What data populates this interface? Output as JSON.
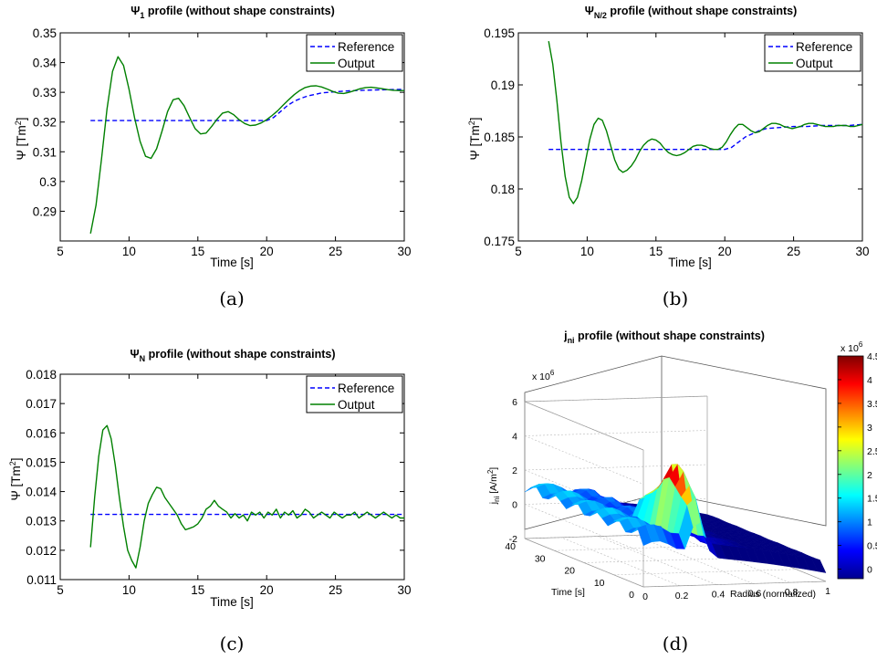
{
  "chart_data": [
    {
      "type": "line",
      "title_main": "Ψ",
      "title_sub": "1",
      "title_rest": " profile (without shape constraints)",
      "xlabel": "Time [s]",
      "ylabel_main": "Ψ [Tm",
      "ylabel_sup": "2",
      "ylabel_end": "]",
      "xlim": [
        5,
        30
      ],
      "ylim": [
        0.28,
        0.35
      ],
      "xticks": [
        "5",
        "10",
        "15",
        "20",
        "25",
        "30"
      ],
      "yticks": [
        "0.29",
        "0.3",
        "0.31",
        "0.32",
        "0.33",
        "0.34",
        "0.35"
      ],
      "legend": [
        "Reference",
        "Output"
      ],
      "caption": "(a)",
      "series": [
        {
          "name": "Reference",
          "color": "#0000ff",
          "style": "dashed",
          "x": [
            7.2,
            20,
            20.5,
            21,
            21.5,
            22,
            22.5,
            23,
            24,
            25,
            26,
            27,
            28,
            29,
            30
          ],
          "y": [
            0.3205,
            0.3205,
            0.3215,
            0.3235,
            0.3255,
            0.327,
            0.328,
            0.3288,
            0.3298,
            0.3302,
            0.3305,
            0.3307,
            0.3308,
            0.3309,
            0.331
          ]
        },
        {
          "name": "Output",
          "color": "#008000",
          "style": "solid",
          "x": [
            7.2,
            7.6,
            8,
            8.4,
            8.8,
            9.2,
            9.6,
            10,
            10.4,
            10.8,
            11.2,
            11.6,
            12,
            12.4,
            12.8,
            13.2,
            13.6,
            14,
            14.4,
            14.8,
            15.2,
            15.6,
            16,
            16.4,
            16.8,
            17.2,
            17.6,
            18,
            18.4,
            18.8,
            19.2,
            19.6,
            20,
            20.4,
            20.8,
            21.2,
            21.6,
            22,
            22.4,
            22.8,
            23.2,
            23.6,
            24,
            24.4,
            24.8,
            25.2,
            25.6,
            26,
            26.4,
            26.8,
            27.2,
            27.6,
            28,
            28.4,
            28.8,
            29.2,
            29.6,
            30
          ],
          "y": [
            0.2825,
            0.292,
            0.3075,
            0.3245,
            0.337,
            0.342,
            0.339,
            0.331,
            0.3215,
            0.3135,
            0.3085,
            0.3078,
            0.311,
            0.317,
            0.3235,
            0.3275,
            0.328,
            0.3255,
            0.3215,
            0.3178,
            0.316,
            0.3163,
            0.3185,
            0.321,
            0.323,
            0.3235,
            0.3225,
            0.3208,
            0.3195,
            0.3188,
            0.319,
            0.3197,
            0.3208,
            0.3222,
            0.3238,
            0.3257,
            0.3275,
            0.3292,
            0.3306,
            0.3316,
            0.3321,
            0.3322,
            0.3318,
            0.3311,
            0.3303,
            0.3297,
            0.3296,
            0.33,
            0.3306,
            0.3312,
            0.3316,
            0.3317,
            0.3315,
            0.3312,
            0.3309,
            0.3307,
            0.3306,
            0.3306
          ]
        }
      ]
    },
    {
      "type": "line",
      "title_main": "Ψ",
      "title_sub": "N/2",
      "title_rest": " profile (without shape constraints)",
      "xlabel": "Time [s]",
      "ylabel_main": "Ψ [Tm",
      "ylabel_sup": "2",
      "ylabel_end": "]",
      "xlim": [
        5,
        30
      ],
      "ylim": [
        0.175,
        0.195
      ],
      "xticks": [
        "5",
        "10",
        "15",
        "20",
        "25",
        "30"
      ],
      "yticks": [
        "0.175",
        "0.18",
        "0.185",
        "0.19",
        "0.195"
      ],
      "legend": [
        "Reference",
        "Output"
      ],
      "caption": "(b)",
      "series": [
        {
          "name": "Reference",
          "color": "#0000ff",
          "style": "dashed",
          "x": [
            7.2,
            20,
            20.5,
            21,
            21.5,
            22,
            22.5,
            23,
            24,
            25,
            26,
            27,
            28,
            29,
            30
          ],
          "y": [
            0.1838,
            0.1838,
            0.184,
            0.1845,
            0.185,
            0.1853,
            0.1856,
            0.1858,
            0.1859,
            0.186,
            0.186,
            0.1861,
            0.1861,
            0.1861,
            0.1862
          ]
        },
        {
          "name": "Output",
          "color": "#008000",
          "style": "solid",
          "x": [
            7.2,
            7.5,
            7.8,
            8.1,
            8.4,
            8.7,
            9.0,
            9.3,
            9.6,
            9.9,
            10.2,
            10.5,
            10.8,
            11.1,
            11.4,
            11.7,
            12,
            12.3,
            12.6,
            12.9,
            13.2,
            13.5,
            13.8,
            14.1,
            14.4,
            14.7,
            15,
            15.3,
            15.6,
            15.9,
            16.2,
            16.5,
            16.8,
            17.1,
            17.4,
            17.7,
            18,
            18.3,
            18.6,
            18.9,
            19.2,
            19.5,
            19.8,
            20.1,
            20.4,
            20.7,
            21,
            21.3,
            21.6,
            21.9,
            22.2,
            22.5,
            22.8,
            23.1,
            23.4,
            23.7,
            24,
            24.3,
            24.6,
            24.9,
            25.2,
            25.5,
            25.8,
            26.1,
            26.4,
            26.7,
            27,
            27.3,
            27.6,
            27.9,
            28.2,
            28.5,
            28.8,
            29.1,
            29.4,
            29.7,
            30
          ],
          "y": [
            0.1942,
            0.192,
            0.1885,
            0.1845,
            0.1812,
            0.1792,
            0.1786,
            0.1792,
            0.1808,
            0.1828,
            0.1848,
            0.1862,
            0.1868,
            0.1866,
            0.1856,
            0.1842,
            0.1828,
            0.1819,
            0.1816,
            0.1818,
            0.1822,
            0.1828,
            0.1836,
            0.1842,
            0.1846,
            0.1848,
            0.1847,
            0.1844,
            0.1839,
            0.1835,
            0.1833,
            0.1832,
            0.1833,
            0.1835,
            0.1838,
            0.1841,
            0.1842,
            0.1842,
            0.1841,
            0.1839,
            0.1838,
            0.1838,
            0.184,
            0.1845,
            0.1852,
            0.1858,
            0.1862,
            0.1862,
            0.1859,
            0.1856,
            0.1854,
            0.1855,
            0.1858,
            0.1861,
            0.1863,
            0.1863,
            0.1862,
            0.186,
            0.1859,
            0.1858,
            0.1859,
            0.186,
            0.1862,
            0.1863,
            0.1863,
            0.1862,
            0.1861,
            0.186,
            0.186,
            0.186,
            0.1861,
            0.1861,
            0.1861,
            0.186,
            0.186,
            0.1861,
            0.1862
          ]
        }
      ]
    },
    {
      "type": "line",
      "title_main": "Ψ",
      "title_sub": "N",
      "title_rest": " profile (without shape constraints)",
      "xlabel": "Time [s]",
      "ylabel_main": "Ψ [Tm",
      "ylabel_sup": "2",
      "ylabel_end": "]",
      "xlim": [
        5,
        30
      ],
      "ylim": [
        0.011,
        0.018
      ],
      "xticks": [
        "5",
        "10",
        "15",
        "20",
        "25",
        "30"
      ],
      "yticks": [
        "0.011",
        "0.012",
        "0.013",
        "0.014",
        "0.015",
        "0.016",
        "0.017",
        "0.018"
      ],
      "legend": [
        "Reference",
        "Output"
      ],
      "caption": "(c)",
      "series": [
        {
          "name": "Reference",
          "color": "#0000ff",
          "style": "dashed",
          "x": [
            7.2,
            30
          ],
          "y": [
            0.01322,
            0.01322
          ]
        },
        {
          "name": "Output",
          "color": "#008000",
          "style": "solid",
          "x": [
            7.2,
            7.5,
            7.8,
            8.1,
            8.4,
            8.7,
            9.0,
            9.3,
            9.6,
            9.9,
            10.2,
            10.5,
            10.8,
            11.1,
            11.4,
            11.7,
            12.0,
            12.3,
            12.6,
            12.9,
            13.2,
            13.5,
            13.8,
            14.1,
            14.4,
            14.7,
            15.0,
            15.3,
            15.6,
            15.9,
            16.2,
            16.5,
            16.8,
            17.1,
            17.4,
            17.7,
            18.0,
            18.3,
            18.6,
            18.9,
            19.2,
            19.5,
            19.8,
            20.1,
            20.4,
            20.7,
            21.0,
            21.3,
            21.6,
            21.9,
            22.2,
            22.5,
            22.8,
            23.1,
            23.4,
            23.7,
            24.0,
            24.3,
            24.6,
            24.9,
            25.2,
            25.5,
            25.8,
            26.1,
            26.4,
            26.7,
            27.0,
            27.3,
            27.6,
            27.9,
            28.2,
            28.5,
            28.8,
            29.1,
            29.4,
            29.7,
            30
          ],
          "y": [
            0.0121,
            0.0138,
            0.0152,
            0.0161,
            0.01625,
            0.0158,
            0.0149,
            0.0138,
            0.0128,
            0.012,
            0.01165,
            0.0114,
            0.0121,
            0.013,
            0.0136,
            0.0139,
            0.01415,
            0.0141,
            0.0138,
            0.0136,
            0.0134,
            0.0132,
            0.0129,
            0.0127,
            0.01275,
            0.0128,
            0.0129,
            0.0131,
            0.0134,
            0.0135,
            0.0137,
            0.0135,
            0.0134,
            0.0133,
            0.0131,
            0.01325,
            0.0131,
            0.0132,
            0.013,
            0.0133,
            0.0132,
            0.0133,
            0.0131,
            0.0133,
            0.0132,
            0.0134,
            0.0131,
            0.0133,
            0.0132,
            0.01335,
            0.0131,
            0.0132,
            0.0134,
            0.0133,
            0.0131,
            0.0132,
            0.0133,
            0.0132,
            0.0131,
            0.0133,
            0.0132,
            0.0131,
            0.0132,
            0.0132,
            0.0133,
            0.0131,
            0.0132,
            0.0133,
            0.0132,
            0.0131,
            0.0132,
            0.0133,
            0.0132,
            0.0131,
            0.0132,
            0.0131,
            0.0131
          ]
        }
      ]
    },
    {
      "type": "surface",
      "title_main": "j",
      "title_sub": "ni",
      "title_rest": " profile (without shape constraints)",
      "xlabel": "Radius (normalized)",
      "ylabel": "Time [s]",
      "zlabel_main": "j",
      "zlabel_sub": "ni",
      "zlabel_rest": " [A/m",
      "zlabel_sup": "2",
      "zlabel_end": "]",
      "xticks": [
        "0",
        "0.2",
        "0.4",
        "0.6",
        "0.8",
        "1"
      ],
      "yticks": [
        "0",
        "10",
        "20",
        "30",
        "40"
      ],
      "zticks": [
        "-2",
        "0",
        "2",
        "4",
        "6"
      ],
      "zexp": "x 10",
      "zexp_sup": "6",
      "xlim": [
        0,
        1
      ],
      "ylim": [
        0,
        40
      ],
      "zlim": [
        -2,
        6
      ],
      "colorbar": {
        "ticks": [
          "0",
          "0.5",
          "1",
          "1.5",
          "2",
          "2.5",
          "3",
          "3.5",
          "4",
          "4.5"
        ],
        "range": [
          -0.2,
          4.5
        ],
        "exp": "x 10",
        "exp_sup": "6"
      },
      "caption": "(d)"
    }
  ]
}
